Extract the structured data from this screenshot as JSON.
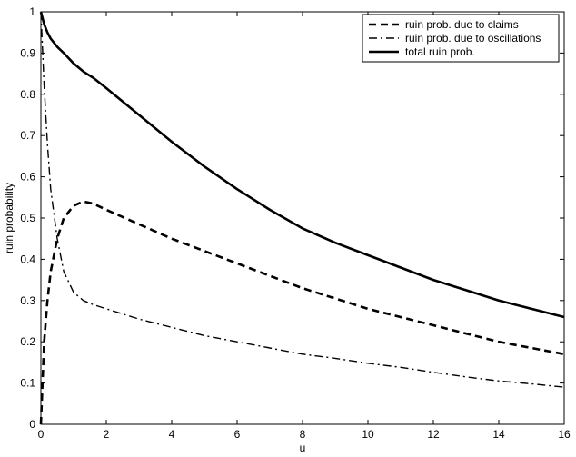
{
  "chart_data": {
    "type": "line",
    "title": "",
    "xlabel": "u",
    "ylabel": "ruin probability",
    "xlim": [
      0,
      16
    ],
    "ylim": [
      0,
      1
    ],
    "xticks": [
      0,
      2,
      4,
      6,
      8,
      10,
      12,
      14,
      16
    ],
    "yticks": [
      0,
      0.1,
      0.2,
      0.3,
      0.4,
      0.5,
      0.6,
      0.7,
      0.8,
      0.9,
      1
    ],
    "grid": false,
    "legend_position": "top-right",
    "series": [
      {
        "name": "ruin prob. due to claims",
        "style": "dashed",
        "color": "#000000",
        "x": [
          0,
          0.1,
          0.2,
          0.3,
          0.5,
          0.7,
          1.0,
          1.3,
          1.6,
          2.0,
          3.0,
          4.0,
          5.0,
          6.0,
          7.0,
          8.0,
          9.0,
          10.0,
          11.0,
          12.0,
          13.0,
          14.0,
          15.0,
          16.0
        ],
        "y": [
          0.0,
          0.2,
          0.3,
          0.37,
          0.45,
          0.5,
          0.53,
          0.54,
          0.535,
          0.52,
          0.485,
          0.45,
          0.42,
          0.39,
          0.36,
          0.33,
          0.305,
          0.28,
          0.26,
          0.24,
          0.22,
          0.2,
          0.185,
          0.17
        ]
      },
      {
        "name": "ruin prob. due to oscillations",
        "style": "dashdot",
        "color": "#000000",
        "x": [
          0,
          0.1,
          0.2,
          0.3,
          0.5,
          0.7,
          1.0,
          1.3,
          1.6,
          2.0,
          3.0,
          4.0,
          5.0,
          6.0,
          7.0,
          8.0,
          9.0,
          10.0,
          11.0,
          12.0,
          13.0,
          14.0,
          15.0,
          16.0
        ],
        "y": [
          1.0,
          0.82,
          0.68,
          0.57,
          0.45,
          0.37,
          0.32,
          0.3,
          0.29,
          0.28,
          0.255,
          0.235,
          0.215,
          0.2,
          0.185,
          0.17,
          0.16,
          0.148,
          0.138,
          0.126,
          0.115,
          0.105,
          0.098,
          0.09
        ]
      },
      {
        "name": "total ruin prob.",
        "style": "solid",
        "color": "#000000",
        "x": [
          0,
          0.1,
          0.2,
          0.3,
          0.5,
          0.7,
          1.0,
          1.3,
          1.6,
          2.0,
          3.0,
          4.0,
          5.0,
          6.0,
          7.0,
          8.0,
          9.0,
          10.0,
          11.0,
          12.0,
          13.0,
          14.0,
          15.0,
          16.0
        ],
        "y": [
          1.0,
          0.97,
          0.95,
          0.935,
          0.915,
          0.9,
          0.875,
          0.855,
          0.84,
          0.815,
          0.75,
          0.685,
          0.625,
          0.57,
          0.52,
          0.475,
          0.44,
          0.41,
          0.38,
          0.35,
          0.325,
          0.3,
          0.28,
          0.26
        ]
      }
    ]
  }
}
